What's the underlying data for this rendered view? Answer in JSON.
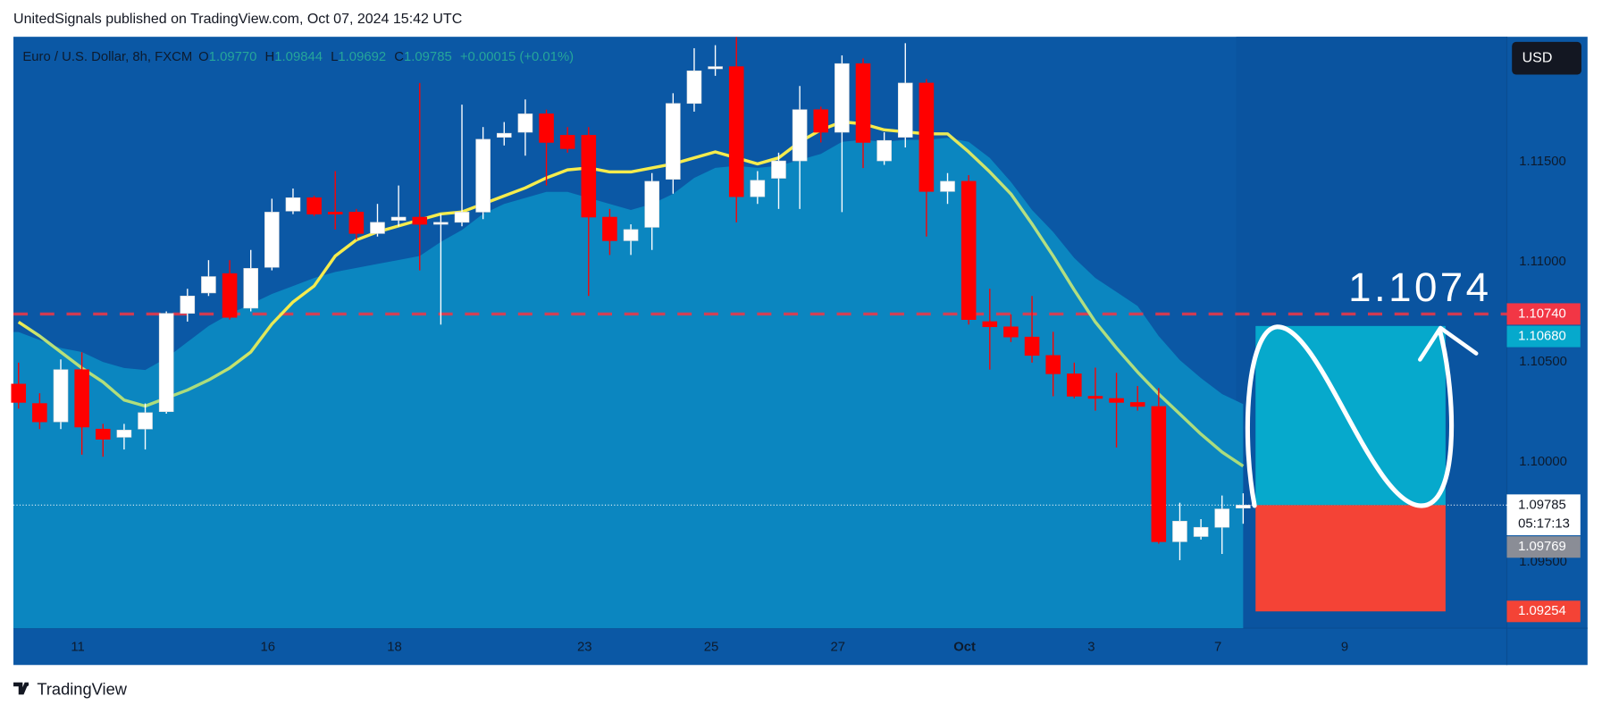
{
  "chart_data": {
    "type": "candlestick",
    "header": "UnitedSignals published on TradingView.com, Oct 07, 2024 15:42 UTC",
    "footer": "TradingView",
    "currency": "USD",
    "legend": {
      "symbol": "Euro / U.S. Dollar, 8h, FXCM",
      "fields": [
        {
          "key": "O",
          "value": "1.09770"
        },
        {
          "key": "H",
          "value": "1.09844"
        },
        {
          "key": "L",
          "value": "1.09692"
        },
        {
          "key": "C",
          "value": "1.09785"
        }
      ],
      "change": "+0.00015 (+0.01%)"
    },
    "annotation": "1.1074",
    "up_color": "#ffffff",
    "down_color": "#ff0000",
    "categories": [
      null,
      null,
      null,
      "11",
      null,
      null,
      null,
      null,
      null,
      null,
      null,
      null,
      "16",
      null,
      null,
      null,
      null,
      null,
      "18",
      null,
      null,
      null,
      null,
      null,
      null,
      null,
      null,
      "23",
      null,
      null,
      null,
      null,
      null,
      "25",
      null,
      null,
      null,
      null,
      null,
      "27",
      null,
      null,
      null,
      null,
      null,
      "Oct",
      null,
      null,
      null,
      null,
      null,
      "3",
      null,
      null,
      null,
      null,
      null,
      "7",
      null,
      null,
      null,
      null,
      null,
      "9"
    ],
    "open": [
      1.1039,
      1.10293,
      1.10201,
      1.10462,
      1.10165,
      1.10124,
      1.10165,
      1.10252,
      1.10743,
      1.10845,
      1.10942,
      1.10769,
      1.10973,
      1.11254,
      1.11321,
      1.11249,
      1.11249,
      1.11142,
      1.11208,
      1.11224,
      1.11188,
      1.11198,
      1.11249,
      1.11623,
      1.11648,
      1.1174,
      1.11633,
      1.11633,
      1.11224,
      1.11106,
      1.11173,
      1.11413,
      1.11792,
      1.11965,
      1.11976,
      1.11326,
      1.11418,
      1.11505,
      1.11761,
      1.11648,
      1.11991,
      1.11505,
      1.11623,
      1.11894,
      1.11352,
      1.11403,
      1.10702,
      1.10676,
      1.10625,
      1.10533,
      1.10441,
      1.10329,
      1.10318,
      1.10298,
      1.10278,
      1.09602,
      1.09628,
      1.09674,
      1.0977,
      null,
      null,
      null,
      null,
      null
    ],
    "high": [
      1.10497,
      1.10344,
      1.10513,
      1.10549,
      1.10191,
      1.10191,
      1.10293,
      1.10753,
      1.10866,
      1.11009,
      1.11009,
      1.1106,
      1.11316,
      1.11367,
      1.11331,
      1.11454,
      1.11265,
      1.1129,
      1.11382,
      1.11894,
      1.11239,
      1.11786,
      1.11674,
      1.11699,
      1.11812,
      1.11761,
      1.11674,
      1.11674,
      1.11265,
      1.11188,
      1.11444,
      1.11843,
      1.12068,
      1.12083,
      1.12124,
      1.11454,
      1.11546,
      1.11879,
      1.11776,
      1.12032,
      1.12017,
      1.11648,
      1.12093,
      1.11914,
      1.11444,
      1.11434,
      1.10866,
      1.10738,
      1.1083,
      1.10651,
      1.10497,
      1.10472,
      1.10446,
      1.1038,
      1.1037,
      1.09797,
      1.09715,
      1.09833,
      1.09844,
      null,
      null,
      null,
      null,
      null
    ],
    "low": [
      1.10267,
      1.10165,
      1.10165,
      1.10037,
      1.10027,
      1.10063,
      1.10063,
      1.10242,
      1.10702,
      1.1083,
      1.10712,
      1.10753,
      1.10958,
      1.11239,
      1.11229,
      1.11162,
      1.11111,
      1.11127,
      1.11178,
      1.10958,
      1.10687,
      1.11178,
      1.11214,
      1.11582,
      1.11531,
      1.11382,
      1.11546,
      1.1083,
      1.11035,
      1.11035,
      1.1106,
      1.11341,
      1.11751,
      1.1193,
      1.11198,
      1.1129,
      1.11265,
      1.11265,
      1.11597,
      1.11249,
      1.11469,
      1.11485,
      1.11572,
      1.11127,
      1.1129,
      1.10687,
      1.10462,
      1.106,
      1.10497,
      1.10329,
      1.10318,
      1.10257,
      1.10073,
      1.10257,
      1.09592,
      1.0951,
      1.09613,
      1.09541,
      1.09692,
      null,
      null,
      null,
      null,
      null
    ],
    "close": [
      1.10298,
      1.10201,
      1.10462,
      1.10175,
      1.10114,
      1.1016,
      1.10247,
      1.10743,
      1.1083,
      1.10927,
      1.10723,
      1.10968,
      1.11249,
      1.11321,
      1.11239,
      1.11239,
      1.11142,
      1.11198,
      1.11224,
      1.11188,
      1.11198,
      1.11249,
      1.11613,
      1.11643,
      1.1174,
      1.11597,
      1.11566,
      1.11224,
      1.11106,
      1.11162,
      1.11403,
      1.11792,
      1.11955,
      1.11976,
      1.11326,
      1.11408,
      1.11505,
      1.11761,
      1.11648,
      1.11991,
      1.11597,
      1.11607,
      1.11894,
      1.11352,
      1.11403,
      1.10712,
      1.10676,
      1.10625,
      1.10533,
      1.10441,
      1.10329,
      1.10318,
      1.10298,
      1.10278,
      1.09602,
      1.09705,
      1.09674,
      1.09766,
      1.09785,
      null,
      null,
      null,
      null,
      null
    ],
    "ma": [
      1.107,
      1.1063,
      1.1055,
      1.1047,
      1.104,
      1.1031,
      1.1028,
      1.1032,
      1.1036,
      1.1041,
      1.1047,
      1.1055,
      1.1069,
      1.108,
      1.1088,
      1.1103,
      1.1111,
      1.1115,
      1.1118,
      1.1121,
      1.1124,
      1.1125,
      1.1129,
      1.1133,
      1.1137,
      1.1142,
      1.1146,
      1.1147,
      1.1145,
      1.1145,
      1.1147,
      1.1149,
      1.1152,
      1.1155,
      1.1152,
      1.1149,
      1.1152,
      1.116,
      1.1166,
      1.117,
      1.1169,
      1.1166,
      1.1165,
      1.1164,
      1.1164,
      1.1155,
      1.1145,
      1.1134,
      1.1119,
      1.1103,
      1.1086,
      1.107,
      1.1057,
      1.1045,
      1.1034,
      1.1024,
      1.1014,
      1.1005,
      1.0998,
      null,
      null,
      null,
      null,
      null
    ],
    "band_upper": [
      1.1065,
      1.1061,
      1.1057,
      1.1055,
      1.105,
      1.1047,
      1.1046,
      1.1052,
      1.106,
      1.1068,
      1.1074,
      1.1079,
      1.1084,
      1.1088,
      1.1092,
      1.1095,
      1.1097,
      1.1099,
      1.1101,
      1.1103,
      1.111,
      1.1116,
      1.1124,
      1.1129,
      1.1132,
      1.1135,
      1.1135,
      1.1132,
      1.1129,
      1.1126,
      1.1129,
      1.1134,
      1.1142,
      1.1147,
      1.1148,
      1.1147,
      1.1148,
      1.1151,
      1.1154,
      1.116,
      1.1161,
      1.116,
      1.1161,
      1.1161,
      1.1162,
      1.116,
      1.1152,
      1.114,
      1.1126,
      1.1115,
      1.1102,
      1.1092,
      1.1085,
      1.1078,
      1.1063,
      1.1051,
      1.1042,
      1.1034,
      1.1029,
      null,
      null,
      null,
      null,
      null
    ],
    "ylim": [
      1.0917,
      1.1212
    ],
    "yticks": [
      {
        "value": 1.115,
        "label": "1.11500"
      },
      {
        "value": 1.11,
        "label": "1.11000"
      },
      {
        "value": 1.105,
        "label": "1.10500"
      },
      {
        "value": 1.1,
        "label": "1.10000"
      },
      {
        "value": 1.095,
        "label": "1.09500"
      }
    ],
    "price_labels": [
      {
        "value": 1.1074,
        "label": "1.10740",
        "color": "#f23645",
        "text_color": "#ffffff",
        "line": "dashed"
      },
      {
        "value": 1.09785,
        "label": "1.09785",
        "countdown": "05:17:13",
        "color": "#ffffff",
        "text_color": "#131722",
        "line": "dotted"
      },
      {
        "value": 1.09769,
        "label": "1.09769",
        "color": "#8a8d96",
        "text_color": "#ffffff"
      }
    ],
    "position": {
      "target": {
        "value": 1.1068,
        "label": "1.10680",
        "color": "#06a9cc"
      },
      "stop": {
        "value": 1.09254,
        "label": "1.09254",
        "color": "#f44336"
      }
    }
  }
}
